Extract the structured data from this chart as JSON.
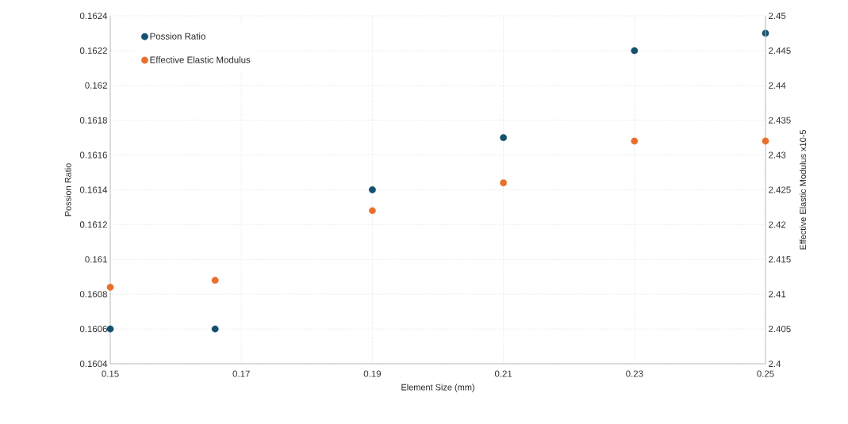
{
  "chart_data": {
    "type": "scatter",
    "xlabel": "Element Size (mm)",
    "ylabel": "Possion Ratio",
    "y2label": "Effective Elastic Modulus x10-5",
    "x": [
      0.15,
      0.166,
      0.19,
      0.21,
      0.23,
      0.25
    ],
    "series": [
      {
        "name": "Possion Ratio",
        "color": "#145070",
        "values": [
          0.1606,
          0.1606,
          0.1614,
          0.1617,
          0.1622,
          0.1623
        ]
      },
      {
        "name": "Effective Elastic Modulus",
        "color": "#e8702a",
        "axis": "y2",
        "values": [
          2.411,
          2.412,
          2.422,
          2.426,
          2.432,
          2.432
        ]
      }
    ],
    "xlim": [
      0.15,
      0.25
    ],
    "xticks": [
      0.15,
      0.17,
      0.19,
      0.21,
      0.23,
      0.25
    ],
    "ylim": [
      0.1604,
      0.1624
    ],
    "yticks": [
      0.1604,
      0.1606,
      0.1608,
      0.161,
      0.1612,
      0.1614,
      0.1616,
      0.1618,
      0.162,
      0.1622,
      0.1624
    ],
    "y2lim": [
      2.4,
      2.45
    ],
    "y2ticks": [
      2.4,
      2.405,
      2.41,
      2.415,
      2.42,
      2.425,
      2.43,
      2.435,
      2.44,
      2.445,
      2.45
    ],
    "grid": true,
    "legend": "top left"
  }
}
